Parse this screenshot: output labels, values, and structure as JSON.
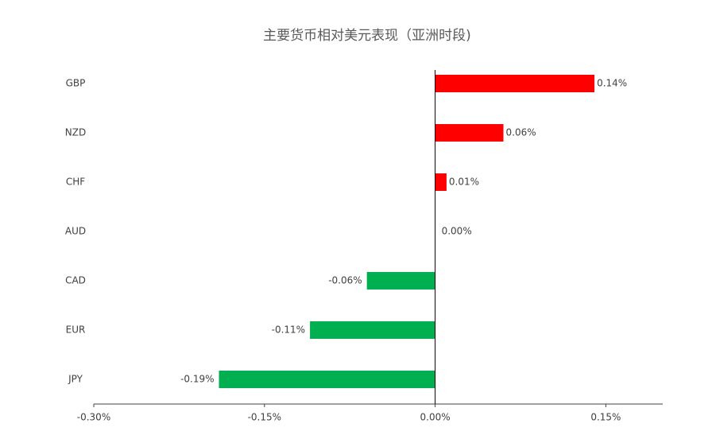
{
  "chart_data": {
    "type": "hbar",
    "title": "主要货币相对美元表现（亚洲时段)",
    "categories": [
      "GBP",
      "NZD",
      "CHF",
      "AUD",
      "CAD",
      "EUR",
      "JPY"
    ],
    "values": [
      0.14,
      0.06,
      0.01,
      0.0,
      -0.06,
      -0.11,
      -0.19
    ],
    "value_labels": [
      "0.14%",
      "0.06%",
      "0.01%",
      "0.00%",
      "-0.06%",
      "-0.11%",
      "-0.19%"
    ],
    "colors": [
      "#ff0000",
      "#ff0000",
      "#ff0000",
      "#ff0000",
      "#00b050",
      "#00b050",
      "#00b050"
    ],
    "xlim": [
      -0.3,
      0.2
    ],
    "xticks": [
      {
        "value": -0.3,
        "label": "-0.30%"
      },
      {
        "value": -0.15,
        "label": "-0.15%"
      },
      {
        "value": 0,
        "label": "0.00%"
      },
      {
        "value": 0.15,
        "label": "0.15%"
      }
    ]
  }
}
